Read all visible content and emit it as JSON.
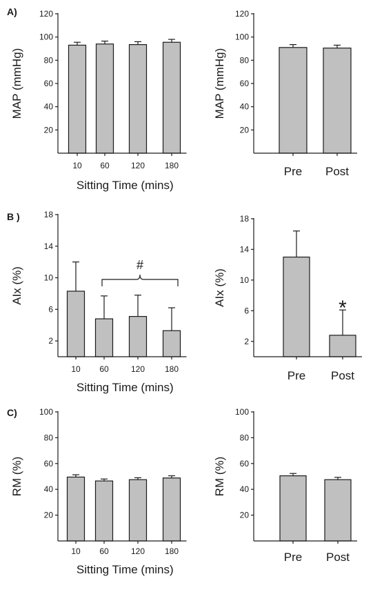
{
  "chart_data": [
    {
      "id": "A-left",
      "type": "bar",
      "panel_label": "A)",
      "categories": [
        "10",
        "60",
        "120",
        "180"
      ],
      "values": [
        93,
        94,
        93.5,
        95.5
      ],
      "errors": [
        2.5,
        2.5,
        2.5,
        2.5
      ],
      "ylabel": "MAP (mmHg)",
      "xlabel": "Sitting Time (mins)",
      "ylim": [
        0,
        120
      ],
      "yticks": [
        20,
        40,
        60,
        80,
        100,
        120
      ],
      "bar_color": "#c0c0c0",
      "annotation": ""
    },
    {
      "id": "A-right",
      "type": "bar",
      "panel_label": "",
      "categories": [
        "Pre",
        "Post"
      ],
      "values": [
        91,
        90.5
      ],
      "errors": [
        2.5,
        2.5
      ],
      "ylabel": "MAP (mmHg)",
      "xlabel": "",
      "ylim": [
        0,
        120
      ],
      "yticks": [
        20,
        40,
        60,
        80,
        100,
        120
      ],
      "bar_color": "#c0c0c0",
      "annotation": ""
    },
    {
      "id": "B-left",
      "type": "bar",
      "panel_label": "B )",
      "categories": [
        "10",
        "60",
        "120",
        "180"
      ],
      "values": [
        8.3,
        4.8,
        5.1,
        3.3
      ],
      "errors": [
        3.7,
        2.9,
        2.7,
        2.9
      ],
      "ylabel": "AIx (%)",
      "xlabel": "Sitting Time (mins)",
      "ylim": [
        0,
        18
      ],
      "yticks": [
        2,
        6,
        10,
        14,
        18
      ],
      "bar_color": "#c0c0c0",
      "annotation": "#"
    },
    {
      "id": "B-right",
      "type": "bar",
      "panel_label": "",
      "categories": [
        "Pre",
        "Post"
      ],
      "values": [
        13.0,
        2.8
      ],
      "errors": [
        3.4,
        3.3
      ],
      "ylabel": "AIx (%)",
      "xlabel": "",
      "ylim": [
        0,
        18
      ],
      "yticks": [
        2,
        6,
        10,
        14,
        18
      ],
      "bar_color": "#c0c0c0",
      "annotation": "*"
    },
    {
      "id": "C-left",
      "type": "bar",
      "panel_label": "C)",
      "categories": [
        "10",
        "60",
        "120",
        "180"
      ],
      "values": [
        49.5,
        46.5,
        47.5,
        48.8
      ],
      "errors": [
        1.8,
        1.5,
        1.5,
        1.7
      ],
      "ylabel": "RM (%)",
      "xlabel": "Sitting Time (mins)",
      "ylim": [
        0,
        100
      ],
      "yticks": [
        20,
        40,
        60,
        80,
        100
      ],
      "bar_color": "#c0c0c0",
      "annotation": ""
    },
    {
      "id": "C-right",
      "type": "bar",
      "panel_label": "",
      "categories": [
        "Pre",
        "Post"
      ],
      "values": [
        50.5,
        47.5
      ],
      "errors": [
        1.8,
        1.8
      ],
      "ylabel": "RM (%)",
      "xlabel": "",
      "ylim": [
        0,
        100
      ],
      "yticks": [
        20,
        40,
        60,
        80,
        100
      ],
      "bar_color": "#c0c0c0",
      "annotation": ""
    }
  ]
}
